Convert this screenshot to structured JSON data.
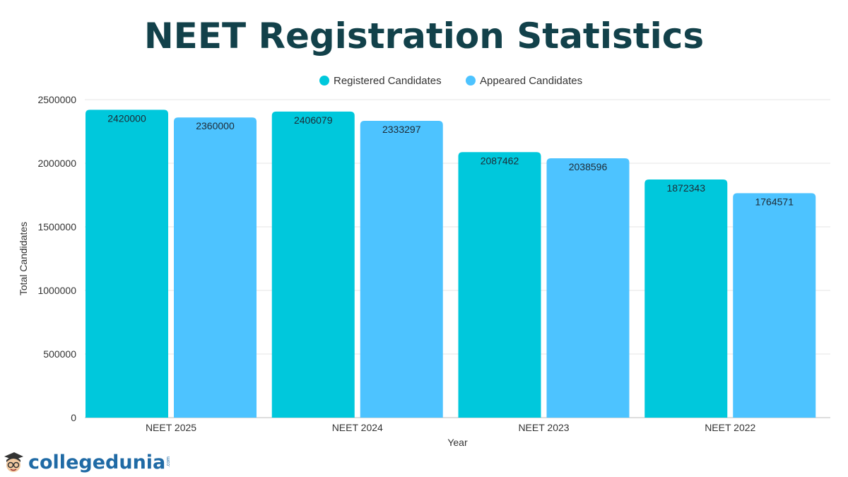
{
  "chart_data": {
    "type": "bar",
    "title": "NEET Registration Statistics",
    "xlabel": "Year",
    "ylabel": "Total Candidates",
    "ylim": [
      0,
      2500000
    ],
    "yticks": [
      0,
      500000,
      1000000,
      1500000,
      2000000,
      2500000
    ],
    "grid": true,
    "legend_placement": "top-center",
    "categories": [
      "NEET 2025",
      "NEET 2024",
      "NEET 2023",
      "NEET 2022"
    ],
    "series": [
      {
        "name": "Registered Candidates",
        "color": "#00c8dc",
        "values": [
          2420000,
          2406079,
          2087462,
          1872343
        ]
      },
      {
        "name": "Appeared Candidates",
        "color": "#4dc3ff",
        "values": [
          2360000,
          2333297,
          2038596,
          1764571
        ]
      }
    ]
  },
  "logo": {
    "text": "collegedunia",
    "suffix": ".com"
  }
}
